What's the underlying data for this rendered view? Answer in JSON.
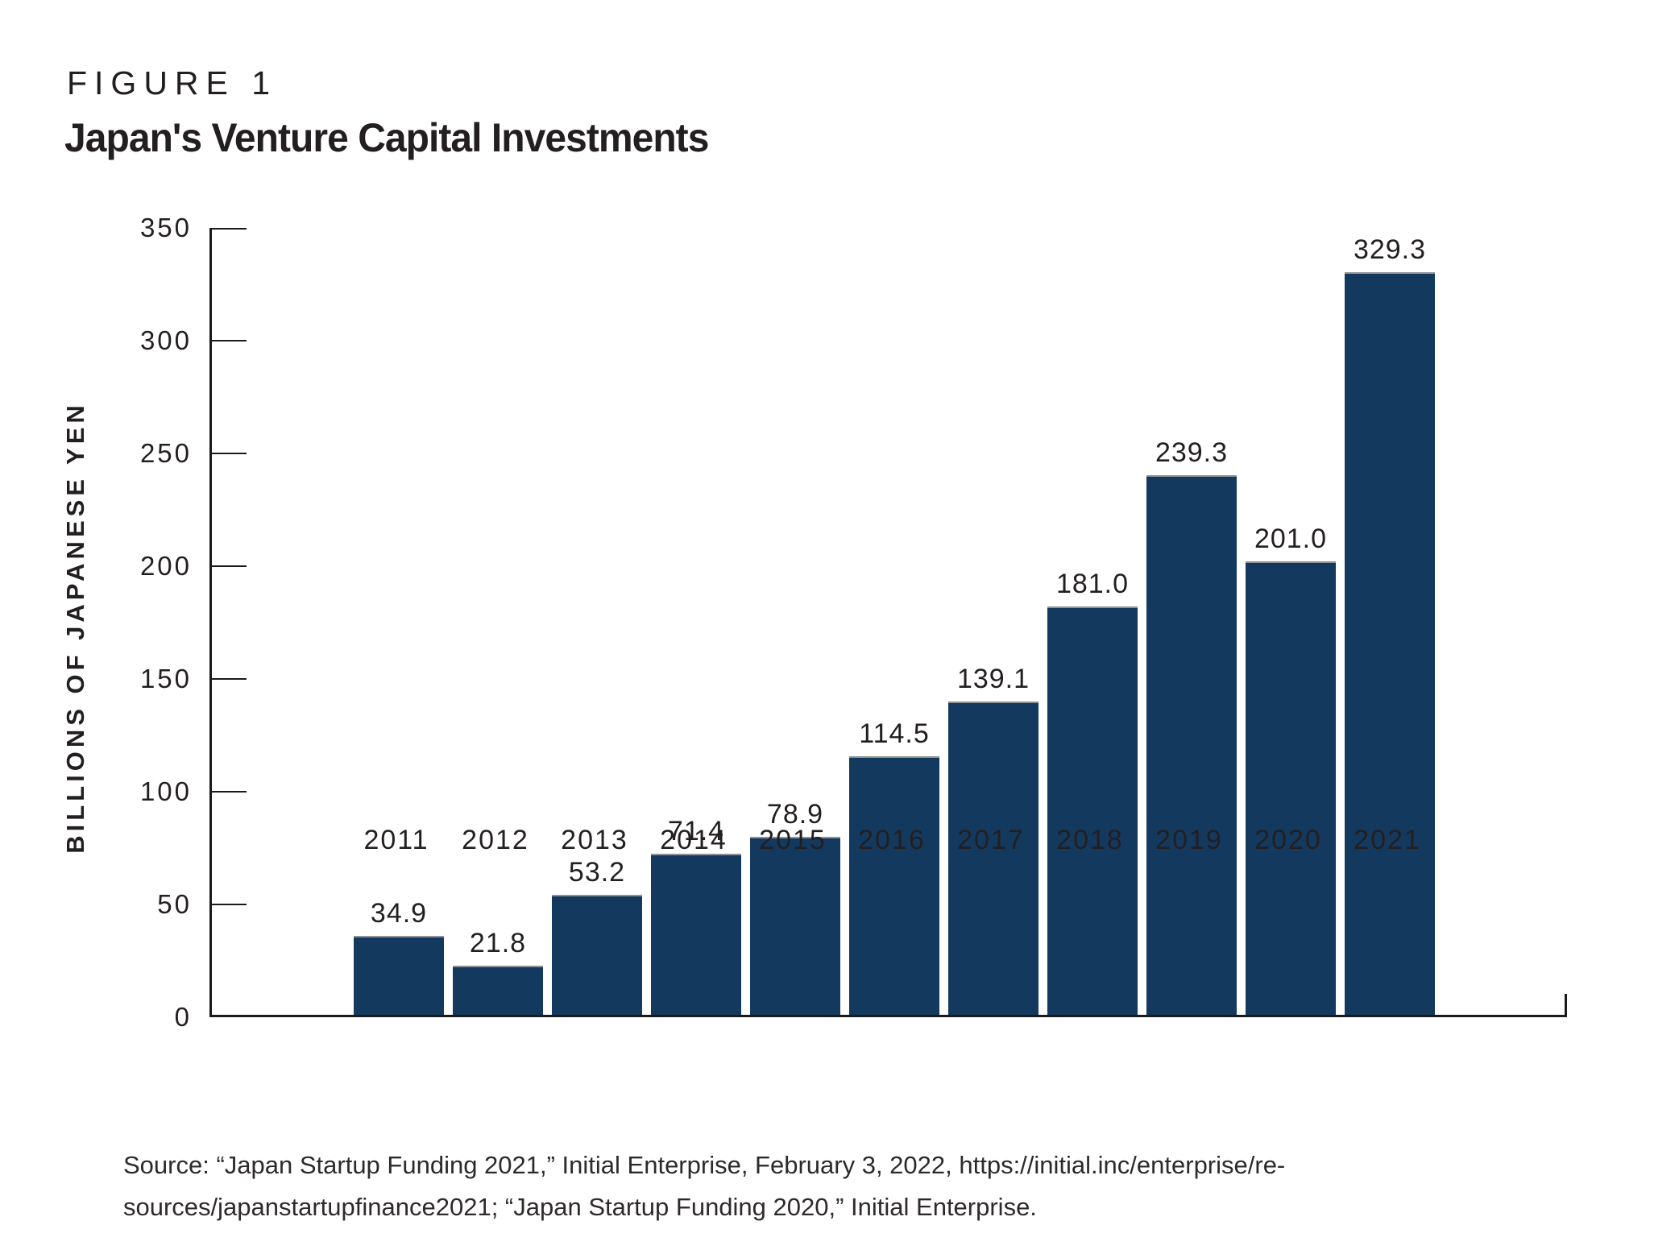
{
  "figure": {
    "kicker": "FIGURE 1",
    "title": "Japan's Venture Capital Investments"
  },
  "chart_data": {
    "type": "bar",
    "title": "Japan's Venture Capital Investments",
    "categories": [
      "2011",
      "2012",
      "2013",
      "2014",
      "2015",
      "2016",
      "2017",
      "2018",
      "2019",
      "2020",
      "2021"
    ],
    "values": [
      34.9,
      21.8,
      53.2,
      71.4,
      78.9,
      114.5,
      139.1,
      181.0,
      239.3,
      201.0,
      329.3
    ],
    "value_labels": [
      "34.9",
      "21.8",
      "53.2",
      "71.4",
      "78.9",
      "114.5",
      "139.1",
      "181.0",
      "239.3",
      "201.0",
      "329.3"
    ],
    "xlabel": "",
    "ylabel": "BILLIONS OF JAPANESE YEN",
    "ylim": [
      0,
      350
    ],
    "yticks": [
      0,
      50,
      100,
      150,
      200,
      250,
      300,
      350
    ],
    "grid": false,
    "legend": "none",
    "bar_color": "#14395f",
    "bar_top_edge_color": "#8f9194",
    "axis_color": "#1a1a1a",
    "text_color": "#231f20"
  },
  "source": {
    "line1": "Source: “Japan Startup Funding 2021,” Initial Enterprise, February 3, 2022, https://initial.inc/enterprise/re-",
    "line2": "sources/japanstartupfinance2021; “Japan Startup Funding 2020,” Initial Enterprise."
  }
}
